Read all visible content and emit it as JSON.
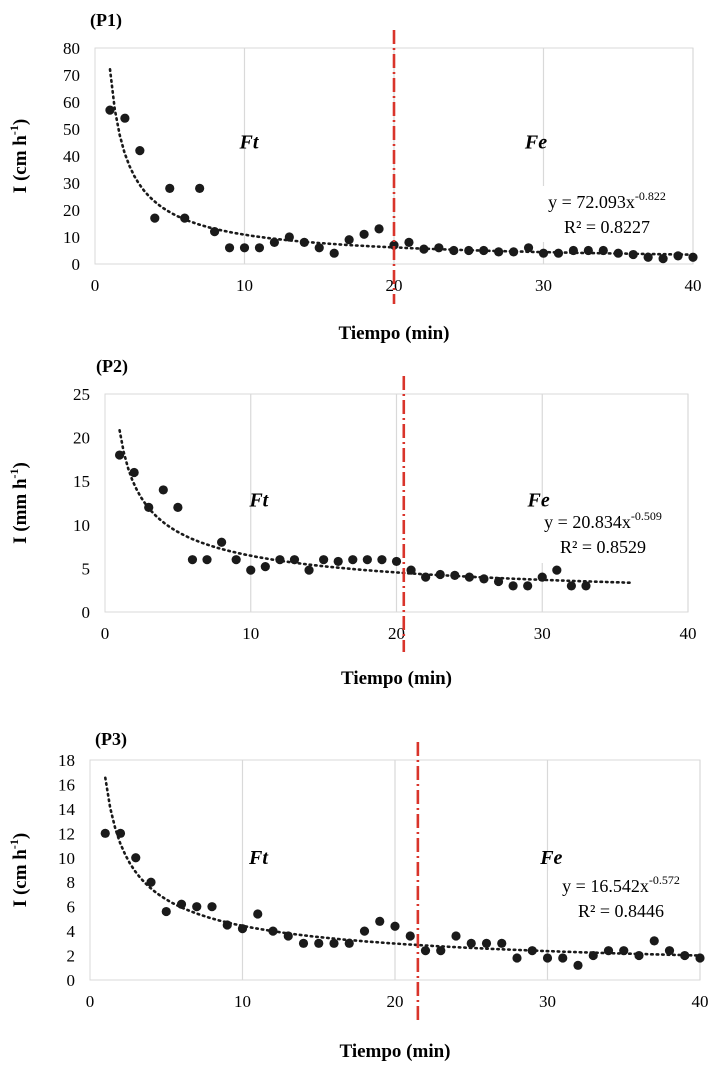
{
  "colors": {
    "marker": "#1a1a1a",
    "trend": "#1a1a1a",
    "grid": "#d9d9d9",
    "divider": "#d9342b",
    "text": "#000000"
  },
  "chart_data": [
    {
      "id": "P1",
      "type": "scatter",
      "panel_label": "(P1)",
      "xlabel": "Tiempo (min)",
      "ylabel_main": "I (cm h",
      "ylabel_sup": "-1",
      "ylabel_close": ")",
      "xlim": [
        0,
        40
      ],
      "ylim": [
        0,
        80
      ],
      "xticks": [
        0,
        10,
        20,
        30,
        40
      ],
      "yticks": [
        0,
        10,
        20,
        30,
        40,
        50,
        60,
        70,
        80
      ],
      "grid": "vertical",
      "divider_x": 20,
      "region_left": "Ft",
      "region_right": "Fe",
      "region_label_y": 45,
      "trend": {
        "type": "power",
        "a": 72.093,
        "b": -0.822,
        "x_start": 1,
        "x_end": 40
      },
      "equation_main": "y = 72.093x",
      "equation_sup": "-0.822",
      "r2_text": "R² = 0.8227",
      "points": [
        [
          1,
          57
        ],
        [
          2,
          54
        ],
        [
          3,
          42
        ],
        [
          4,
          17
        ],
        [
          5,
          28
        ],
        [
          6,
          17
        ],
        [
          7,
          28
        ],
        [
          8,
          12
        ],
        [
          9,
          6
        ],
        [
          10,
          6
        ],
        [
          11,
          6
        ],
        [
          12,
          8
        ],
        [
          13,
          10
        ],
        [
          14,
          8
        ],
        [
          15,
          6
        ],
        [
          16,
          4
        ],
        [
          17,
          9
        ],
        [
          18,
          11
        ],
        [
          19,
          13
        ],
        [
          20,
          7
        ],
        [
          21,
          8
        ],
        [
          22,
          5.5
        ],
        [
          23,
          6
        ],
        [
          24,
          5
        ],
        [
          25,
          5
        ],
        [
          26,
          5
        ],
        [
          27,
          4.5
        ],
        [
          28,
          4.5
        ],
        [
          29,
          6
        ],
        [
          30,
          4
        ],
        [
          31,
          4
        ],
        [
          32,
          5
        ],
        [
          33,
          5
        ],
        [
          34,
          5
        ],
        [
          35,
          4
        ],
        [
          36,
          3.5
        ],
        [
          37,
          2.5
        ],
        [
          38,
          2
        ],
        [
          39,
          3
        ],
        [
          40,
          2.5
        ]
      ]
    },
    {
      "id": "P2",
      "type": "scatter",
      "panel_label": "(P2)",
      "xlabel": "Tiempo (min)",
      "ylabel_main": "I (mm h",
      "ylabel_sup": "-1",
      "ylabel_close": ")",
      "xlim": [
        0,
        40
      ],
      "ylim": [
        0,
        25
      ],
      "xticks": [
        0,
        10,
        20,
        30,
        40
      ],
      "yticks": [
        0,
        5,
        10,
        15,
        20,
        25
      ],
      "grid": "vertical",
      "divider_x": 20.5,
      "region_left": "Ft",
      "region_right": "Fe",
      "region_label_y": 12.8,
      "trend": {
        "type": "power",
        "a": 20.834,
        "b": -0.509,
        "x_start": 1,
        "x_end": 36
      },
      "equation_main": "y = 20.834x",
      "equation_sup": "-0.509",
      "r2_text": "R² = 0.8529",
      "points": [
        [
          1,
          18
        ],
        [
          2,
          16
        ],
        [
          3,
          12
        ],
        [
          4,
          14
        ],
        [
          5,
          12
        ],
        [
          6,
          6
        ],
        [
          7,
          6
        ],
        [
          8,
          8
        ],
        [
          9,
          6
        ],
        [
          10,
          4.8
        ],
        [
          11,
          5.2
        ],
        [
          12,
          6
        ],
        [
          13,
          6
        ],
        [
          14,
          4.8
        ],
        [
          15,
          6
        ],
        [
          16,
          5.8
        ],
        [
          17,
          6
        ],
        [
          18,
          6
        ],
        [
          19,
          6
        ],
        [
          20,
          5.8
        ],
        [
          21,
          4.8
        ],
        [
          22,
          4
        ],
        [
          23,
          4.3
        ],
        [
          24,
          4.2
        ],
        [
          25,
          4
        ],
        [
          26,
          3.8
        ],
        [
          27,
          3.5
        ],
        [
          28,
          3
        ],
        [
          29,
          3
        ],
        [
          30,
          4
        ],
        [
          31,
          4.8
        ],
        [
          32,
          3
        ],
        [
          33,
          3
        ]
      ]
    },
    {
      "id": "P3",
      "type": "scatter",
      "panel_label": "(P3)",
      "xlabel": "Tiempo (min)",
      "ylabel_main": "I (cm h",
      "ylabel_sup": "-1",
      "ylabel_close": ")",
      "xlim": [
        0,
        40
      ],
      "ylim": [
        0,
        18
      ],
      "xticks": [
        0,
        10,
        20,
        30,
        40
      ],
      "yticks": [
        0,
        2,
        4,
        6,
        8,
        10,
        12,
        14,
        16,
        18
      ],
      "grid": "vertical",
      "divider_x": 21.5,
      "region_left": "Ft",
      "region_right": "Fe",
      "region_label_y": 10,
      "trend": {
        "type": "power",
        "a": 16.542,
        "b": -0.572,
        "x_start": 1,
        "x_end": 40
      },
      "equation_main": "y = 16.542x",
      "equation_sup": "-0.572",
      "r2_text": "R² = 0.8446",
      "points": [
        [
          1,
          12
        ],
        [
          2,
          12
        ],
        [
          3,
          10
        ],
        [
          4,
          8
        ],
        [
          5,
          5.6
        ],
        [
          6,
          6.2
        ],
        [
          7,
          6
        ],
        [
          8,
          6
        ],
        [
          9,
          4.5
        ],
        [
          10,
          4.2
        ],
        [
          11,
          5.4
        ],
        [
          12,
          4
        ],
        [
          13,
          3.6
        ],
        [
          14,
          3
        ],
        [
          15,
          3
        ],
        [
          16,
          3
        ],
        [
          17,
          3
        ],
        [
          18,
          4
        ],
        [
          19,
          4.8
        ],
        [
          20,
          4.4
        ],
        [
          21,
          3.6
        ],
        [
          22,
          2.4
        ],
        [
          23,
          2.4
        ],
        [
          24,
          3.6
        ],
        [
          25,
          3
        ],
        [
          26,
          3
        ],
        [
          27,
          3
        ],
        [
          28,
          1.8
        ],
        [
          29,
          2.4
        ],
        [
          30,
          1.8
        ],
        [
          31,
          1.8
        ],
        [
          32,
          1.2
        ],
        [
          33,
          2
        ],
        [
          34,
          2.4
        ],
        [
          35,
          2.4
        ],
        [
          36,
          2
        ],
        [
          37,
          3.2
        ],
        [
          38,
          2.4
        ],
        [
          39,
          2
        ],
        [
          40,
          1.8
        ]
      ]
    }
  ]
}
